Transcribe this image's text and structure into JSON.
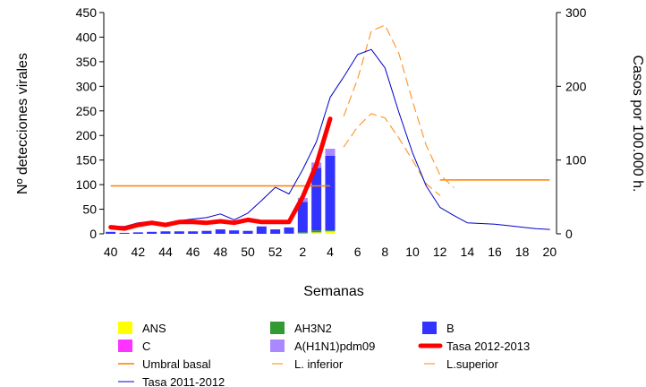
{
  "chart_data": {
    "type": "bar",
    "x_label": "Semanas",
    "y_left_label": "Nº detecciones virales",
    "y_right_label": "Casos por 100.000 h.",
    "y_left_range": [
      0,
      450
    ],
    "y_right_range": [
      0,
      300
    ],
    "y_left_ticks": [
      0,
      50,
      100,
      150,
      200,
      250,
      300,
      350,
      400,
      450
    ],
    "y_right_ticks": [
      0,
      100,
      200,
      300
    ],
    "weeks": [
      40,
      41,
      42,
      43,
      44,
      45,
      46,
      47,
      48,
      49,
      50,
      51,
      52,
      1,
      2,
      3,
      4,
      5,
      6,
      7,
      8,
      9,
      10,
      11,
      12,
      13,
      14,
      15,
      16,
      17,
      18,
      19,
      20
    ],
    "x_tick_labels": [
      "40",
      "42",
      "44",
      "46",
      "48",
      "50",
      "52",
      "2",
      "4",
      "6",
      "8",
      "10",
      "12",
      "14",
      "16",
      "18",
      "20"
    ],
    "grid": false,
    "legend_placement": "bottom",
    "bar_series": [
      {
        "name": "ANS",
        "color": "#ffff00",
        "values": [
          0,
          0,
          0,
          0,
          0,
          0,
          0,
          0,
          0,
          0,
          0,
          0,
          0,
          0,
          1,
          3,
          5
        ]
      },
      {
        "name": "AH3N2",
        "color": "#339933",
        "values": [
          0,
          0,
          0,
          0,
          0,
          0,
          0,
          0,
          0,
          0,
          0,
          0,
          0,
          1,
          2,
          4,
          2
        ]
      },
      {
        "name": "B",
        "color": "#3333ff",
        "values": [
          4,
          2,
          3,
          4,
          5,
          5,
          5,
          6,
          9,
          7,
          6,
          15,
          9,
          12,
          62,
          127,
          152
        ]
      },
      {
        "name": "C",
        "color": "#ff33ff",
        "values": [
          0,
          0,
          0,
          0,
          0,
          0,
          0,
          0,
          0,
          0,
          0,
          0,
          0,
          0,
          0,
          0,
          0
        ]
      },
      {
        "name": "A(H1N1)pdm09",
        "color": "#aa88ff",
        "values": [
          0,
          0,
          0,
          0,
          0,
          0,
          0,
          0,
          0,
          0,
          0,
          0,
          0,
          0,
          8,
          11,
          14
        ]
      }
    ],
    "line_series": [
      {
        "name": "Tasa 2012-2013",
        "color": "#ff0000",
        "axis": "right",
        "values": [
          9,
          7,
          12,
          15,
          12,
          16,
          16,
          15,
          17,
          15,
          19,
          16,
          16,
          16,
          50,
          94,
          156
        ]
      },
      {
        "name": "Umbral basal",
        "color": "#ff7f00",
        "axis": "right",
        "segments": [
          {
            "from_week_index": 0,
            "to_week_index": 16,
            "value": 65
          },
          {
            "from_week_index": 24,
            "to_week_index": 32,
            "value": 73
          }
        ]
      },
      {
        "name": "L. inferior",
        "color": "#ff9933",
        "axis": "right",
        "start_index": 17,
        "values": [
          118,
          145,
          163,
          157,
          130,
          100,
          68,
          52
        ]
      },
      {
        "name": "L.superior",
        "color": "#ff9933",
        "axis": "right",
        "start_index": 17,
        "values": [
          160,
          210,
          275,
          283,
          245,
          180,
          120,
          80,
          63
        ]
      },
      {
        "name": "Tasa 2011-2012",
        "color": "#0000cc",
        "axis": "right",
        "values": [
          10,
          10,
          15,
          17,
          14,
          18,
          20,
          22,
          27,
          19,
          28,
          45,
          63,
          54,
          87,
          125,
          185,
          213,
          243,
          250,
          225,
          165,
          110,
          65,
          36,
          25,
          15,
          14,
          13,
          11,
          9,
          7,
          6
        ]
      }
    ]
  },
  "legend": [
    {
      "label": "ANS",
      "kind": "box",
      "color": "#ffff00"
    },
    {
      "label": "AH3N2",
      "kind": "box",
      "color": "#339933"
    },
    {
      "label": "B",
      "kind": "box",
      "color": "#3333ff"
    },
    {
      "label": "C",
      "kind": "box",
      "color": "#ff33ff"
    },
    {
      "label": "A(H1N1)pdm09",
      "kind": "box",
      "color": "#aa88ff"
    },
    {
      "label": "Tasa 2012-2013",
      "kind": "thick",
      "color": "#ff0000"
    },
    {
      "label": "Umbral basal",
      "kind": "solid",
      "color": "#ff7f00"
    },
    {
      "label": "L. inferior",
      "kind": "dash",
      "color": "#ff9933"
    },
    {
      "label": "L.superior",
      "kind": "dash",
      "color": "#ff9933"
    },
    {
      "label": "Tasa 2011-2012",
      "kind": "thin",
      "color": "#0000cc"
    }
  ]
}
